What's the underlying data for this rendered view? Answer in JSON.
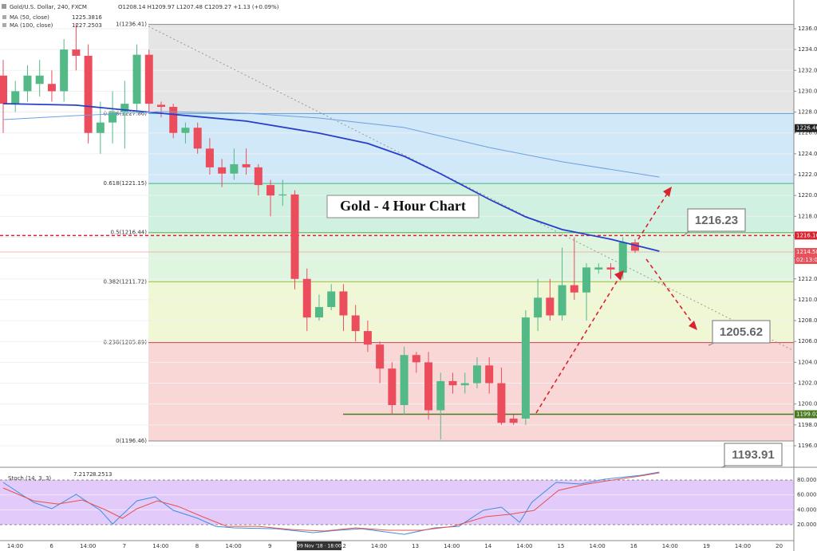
{
  "header": {
    "symbol": "Gold/U.S. Dollar, 240, FXCM",
    "ohlc": "O1208.14 H1209.97 L1207.48 C1209.27 +1.13 (+0.09%)",
    "countdown": "02:13:00"
  },
  "chart_data": [
    {
      "type": "candlestick",
      "title": "Gold - 4 Hour Chart",
      "up_color": "#53b987",
      "down_color": "#eb4d5c",
      "open": [
        1231.5,
        1228.8,
        1230,
        1230.7,
        1230.7,
        1230,
        1234,
        1233.4,
        1226,
        1227,
        1228,
        1228.8,
        1233.5,
        1228.7,
        1228.5,
        1226,
        1226.5,
        1224.5,
        1222.7,
        1222.1,
        1223,
        1222.7,
        1221,
        1220,
        1220.1,
        1212,
        1208.3,
        1209.3,
        1210.8,
        1208.5,
        1207,
        1205.7,
        1203.4,
        1199.9,
        1204.7,
        1204,
        1199.4,
        1202.2,
        1201.8,
        1202,
        1203.7,
        1202,
        1198.6,
        1198.6,
        1208.3,
        1210.2,
        1208.5,
        1211.4,
        1210.7,
        1212.9,
        1213.1,
        1212.6,
        1215.5
      ],
      "high": [
        1233,
        1231,
        1232.5,
        1233,
        1232,
        1235,
        1236.5,
        1234.5,
        1229,
        1230,
        1231,
        1234.5,
        1234,
        1229,
        1228.8,
        1227,
        1227,
        1225.5,
        1223.5,
        1224.5,
        1224.5,
        1223,
        1221.5,
        1221.5,
        1220.5,
        1213,
        1210.5,
        1211.5,
        1211.5,
        1209.5,
        1208,
        1206,
        1204,
        1205.5,
        1205,
        1205,
        1203,
        1203,
        1203,
        1204.5,
        1204.5,
        1203.5,
        1199,
        1209,
        1212,
        1212,
        1215,
        1216,
        1213.5,
        1213.5,
        1213.5,
        1216,
        1215.8
      ],
      "low": [
        1226,
        1228,
        1229,
        1229.5,
        1229,
        1229,
        1232,
        1225,
        1224,
        1225,
        1224.5,
        1228,
        1228,
        1227.5,
        1225.5,
        1225,
        1224,
        1222,
        1220.8,
        1221.5,
        1222,
        1220,
        1218,
        1219,
        1211,
        1207,
        1208,
        1209,
        1207,
        1206,
        1205,
        1202,
        1199,
        1199,
        1203,
        1198.5,
        1196.6,
        1201,
        1201,
        1201.5,
        1201,
        1198,
        1198,
        1198,
        1207,
        1208,
        1208,
        1210,
        1208,
        1212.5,
        1212,
        1212,
        1214.5
      ],
      "close": [
        1228.8,
        1230,
        1231.5,
        1231.5,
        1230,
        1234,
        1233.4,
        1226,
        1227,
        1228,
        1228.8,
        1233.5,
        1228.8,
        1228.5,
        1226,
        1226.5,
        1224.5,
        1222.7,
        1222.1,
        1223,
        1222.7,
        1221,
        1220,
        1220.1,
        1212,
        1208.3,
        1209.3,
        1210.8,
        1208.5,
        1207,
        1205.7,
        1203.4,
        1199.9,
        1204.7,
        1204,
        1199.4,
        1202.2,
        1201.8,
        1202,
        1203.7,
        1202,
        1198.2,
        1198.2,
        1208.3,
        1210.2,
        1208.5,
        1211.4,
        1210.7,
        1213.1,
        1213.1,
        1212.9,
        1215.5,
        1214.7
      ],
      "series": [
        {
          "name": "MA (50, close)",
          "legend_value": "1225.3816",
          "color": "#2740c8",
          "x": [
            0,
            6,
            10,
            13,
            20,
            26,
            30,
            33,
            36,
            40,
            43,
            46,
            50,
            54
          ],
          "values": [
            1228.81,
            1228.66,
            1228.2,
            1227.89,
            1227.13,
            1225.98,
            1224.99,
            1223.76,
            1222.08,
            1219.63,
            1217.95,
            1216.73,
            1215.81,
            1214.66
          ]
        },
        {
          "name": "MA (100, close)",
          "legend_value": "1227.2503",
          "color": "#6f9fe0",
          "x": [
            0,
            6,
            13,
            20,
            26,
            33,
            40,
            46,
            54
          ],
          "values": [
            1227.28,
            1227.66,
            1228.05,
            1227.89,
            1227.43,
            1226.52,
            1224.6,
            1223.23,
            1221.77
          ]
        }
      ],
      "fib_levels": [
        {
          "value": 1236.41,
          "label": "1(1236.41)"
        },
        {
          "value": 1227.86,
          "label": "0.786(1227.86)"
        },
        {
          "value": 1221.15,
          "label": "0.618(1221.15)"
        },
        {
          "value": 1216.44,
          "label": "0.5(1216.44)"
        },
        {
          "value": 1211.72,
          "label": "0.382(1211.72)"
        },
        {
          "value": 1205.89,
          "label": "0.236(1205.89)"
        },
        {
          "value": 1196.46,
          "label": "0(1196.46)"
        }
      ],
      "price_tags": [
        1226.46,
        1216.16,
        1214.58,
        1199.02
      ],
      "annotations": [
        1216.23,
        1205.62,
        1193.91
      ],
      "x_labels": [
        "14:00",
        "6",
        "14:00",
        "7",
        "14:00",
        "8",
        "14:00",
        "9",
        "12",
        "14:00",
        "13",
        "14:00",
        "14",
        "14:00",
        "15",
        "14:00",
        "16",
        "14:00",
        "19",
        "14:00",
        "20"
      ],
      "x_highlight": "09 Nov '18 · 18:00",
      "ylim": [
        1194.01,
        1238.75
      ],
      "yticks": [
        {
          "value": 1196,
          "label": "1196.00"
        },
        {
          "value": 1198,
          "label": "1198.00"
        },
        {
          "value": 1200,
          "label": "1200.00"
        },
        {
          "value": 1202,
          "label": "1202.00"
        },
        {
          "value": 1204,
          "label": "1204.00"
        },
        {
          "value": 1206,
          "label": "1206.00"
        },
        {
          "value": 1208,
          "label": "1208.00"
        },
        {
          "value": 1210,
          "label": "1210.00"
        },
        {
          "value": 1212,
          "label": "1212.00"
        },
        {
          "value": 1214,
          "label": "1214.00"
        },
        {
          "value": 1216,
          "label": "1216.00"
        },
        {
          "value": 1218,
          "label": "1218.00"
        },
        {
          "value": 1220,
          "label": "1220.00"
        },
        {
          "value": 1222,
          "label": "1222.00"
        },
        {
          "value": 1224,
          "label": "1224.00"
        },
        {
          "value": 1226,
          "label": "1226.00"
        },
        {
          "value": 1228,
          "label": "1228.00"
        },
        {
          "value": 1230,
          "label": "1230.00"
        },
        {
          "value": 1232,
          "label": "1232.00"
        },
        {
          "value": 1234,
          "label": "1234.00"
        },
        {
          "value": 1236,
          "label": "1236.00"
        }
      ]
    },
    {
      "type": "line",
      "title": "Stoch (14, 3, 3)",
      "series": [
        {
          "legend_value": "7.2172",
          "color": "#3d8fe0",
          "x": [
            0,
            2.5,
            4,
            6,
            8,
            9,
            11,
            12.5,
            14,
            16,
            17.5,
            19,
            22.5,
            25.5,
            27.5,
            29.5,
            33,
            35.5,
            37.5,
            39.5,
            41,
            42.5,
            43.5,
            45.5,
            47.5,
            49.5,
            52.5,
            54
          ],
          "values": [
            76.8,
            50,
            41.4,
            60.7,
            39.3,
            21,
            52.1,
            57.5,
            39.3,
            28.6,
            17.8,
            15.7,
            14.6,
            9.3,
            12.5,
            14.6,
            7.1,
            15.7,
            17.8,
            39.3,
            43.6,
            23.2,
            50,
            76.8,
            74.6,
            81.1,
            86.4,
            90.7
          ]
        },
        {
          "legend_value": "8.2513",
          "color": "#e8504a",
          "x": [
            0,
            2.5,
            4.5,
            6.5,
            8.5,
            9.8,
            11,
            12.7,
            14.4,
            16.4,
            18.4,
            21,
            23.7,
            26.4,
            29,
            31.7,
            34.4,
            37,
            39.7,
            41.7,
            43.7,
            45.7,
            47.7,
            49.7,
            52.4,
            54
          ],
          "values": [
            69.3,
            52.1,
            47.8,
            53.2,
            39.3,
            28.6,
            41.4,
            52.1,
            44.6,
            30.7,
            17.8,
            17.8,
            13.5,
            11.4,
            15.7,
            12.5,
            12.5,
            17.8,
            30.7,
            33.9,
            39.3,
            66.1,
            73.6,
            78.9,
            85.4,
            89.6
          ]
        }
      ],
      "ylim": [
        -1.4,
        95
      ],
      "yticks": [
        {
          "value": 80,
          "label": "80.0000"
        },
        {
          "value": 60,
          "label": "60.0000"
        },
        {
          "value": 40,
          "label": "40.0000"
        },
        {
          "value": 20,
          "label": "20.0000"
        }
      ]
    }
  ]
}
